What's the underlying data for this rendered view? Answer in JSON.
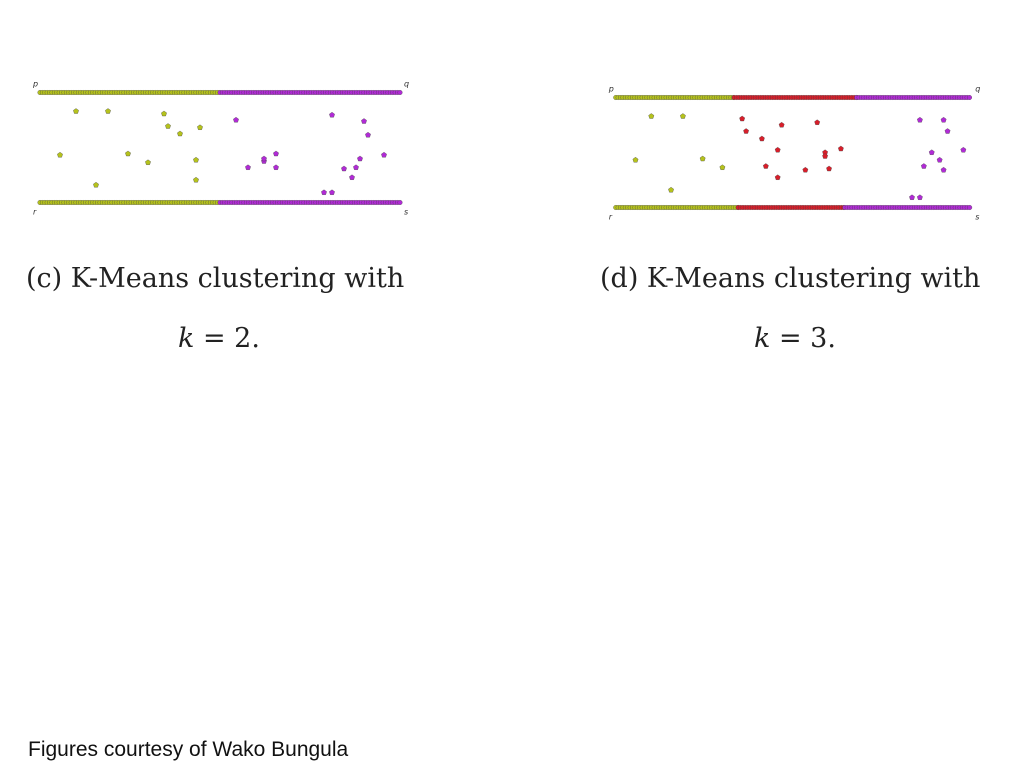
{
  "colors": {
    "olive": "#b5c21c",
    "purple": "#b12ad6",
    "red": "#d81e2a",
    "edge": "#444444"
  },
  "captions": {
    "c_line1": "(c) K-Means clustering with",
    "c_k": "k",
    "c_rest": " = 2.",
    "d_line1": "(d) K-Means clustering with",
    "d_k": "k",
    "d_rest": " = 3."
  },
  "footer": {
    "text": "Figures courtesy of Wako Bungula"
  },
  "chart_data": [
    {
      "type": "scatter",
      "title": "",
      "corner_labels": {
        "top_left": "p",
        "top_right": "q",
        "bottom_left": "r",
        "bottom_right": "s"
      },
      "xlim": [
        0,
        100
      ],
      "ylim": [
        0,
        100
      ],
      "lines": [
        {
          "y": 94,
          "x_start": 5,
          "x_end": 95,
          "segments": [
            {
              "from": 5,
              "to": 50,
              "cluster": 0
            },
            {
              "from": 50,
              "to": 95,
              "cluster": 1
            }
          ]
        },
        {
          "y": 6,
          "x_start": 5,
          "x_end": 95,
          "segments": [
            {
              "from": 5,
              "to": 50,
              "cluster": 0
            },
            {
              "from": 50,
              "to": 95,
              "cluster": 1
            }
          ]
        }
      ],
      "clusters": [
        {
          "color": "olive",
          "points": [
            [
              14,
              79
            ],
            [
              22,
              79
            ],
            [
              36,
              77
            ],
            [
              37,
              67
            ],
            [
              40,
              61
            ],
            [
              45,
              66
            ],
            [
              10,
              44
            ],
            [
              27,
              45
            ],
            [
              32,
              38
            ],
            [
              44,
              40
            ],
            [
              44,
              24
            ],
            [
              19,
              20
            ]
          ]
        },
        {
          "color": "purple",
          "points": [
            [
              54,
              72
            ],
            [
              78,
              76
            ],
            [
              86,
              71
            ],
            [
              87,
              60
            ],
            [
              57,
              34
            ],
            [
              61,
              39
            ],
            [
              61,
              41
            ],
            [
              64,
              34
            ],
            [
              64,
              45
            ],
            [
              85,
              41
            ],
            [
              91,
              44
            ],
            [
              81,
              33
            ],
            [
              76,
              14
            ],
            [
              78,
              14
            ],
            [
              83,
              26
            ],
            [
              84,
              34
            ]
          ]
        }
      ]
    },
    {
      "type": "scatter",
      "title": "",
      "corner_labels": {
        "top_left": "p",
        "top_right": "q",
        "bottom_left": "r",
        "bottom_right": "s"
      },
      "xlim": [
        0,
        100
      ],
      "ylim": [
        0,
        100
      ],
      "lines": [
        {
          "y": 94,
          "x_start": 5,
          "x_end": 95,
          "segments": [
            {
              "from": 5,
              "to": 35,
              "cluster": 0
            },
            {
              "from": 35,
              "to": 66,
              "cluster": 1
            },
            {
              "from": 66,
              "to": 95,
              "cluster": 2
            }
          ]
        },
        {
          "y": 6,
          "x_start": 5,
          "x_end": 95,
          "segments": [
            {
              "from": 5,
              "to": 36,
              "cluster": 0
            },
            {
              "from": 36,
              "to": 63,
              "cluster": 1
            },
            {
              "from": 63,
              "to": 95,
              "cluster": 2
            }
          ]
        }
      ],
      "clusters": [
        {
          "color": "olive",
          "points": [
            [
              14,
              79
            ],
            [
              22,
              79
            ],
            [
              10,
              44
            ],
            [
              27,
              45
            ],
            [
              32,
              38
            ],
            [
              19,
              20
            ]
          ]
        },
        {
          "color": "red",
          "points": [
            [
              37,
              77
            ],
            [
              38,
              67
            ],
            [
              47,
              72
            ],
            [
              42,
              61
            ],
            [
              56,
              74
            ],
            [
              46,
              52
            ],
            [
              43,
              39
            ],
            [
              58,
              50
            ],
            [
              58,
              47
            ],
            [
              62,
              53
            ],
            [
              59,
              37
            ],
            [
              53,
              36
            ],
            [
              46,
              30
            ]
          ]
        },
        {
          "color": "purple",
          "points": [
            [
              82,
              76
            ],
            [
              88,
              76
            ],
            [
              89,
              67
            ],
            [
              93,
              52
            ],
            [
              85,
              50
            ],
            [
              87,
              44
            ],
            [
              83,
              39
            ],
            [
              88,
              36
            ],
            [
              80,
              14
            ],
            [
              82,
              14
            ]
          ]
        }
      ]
    }
  ]
}
